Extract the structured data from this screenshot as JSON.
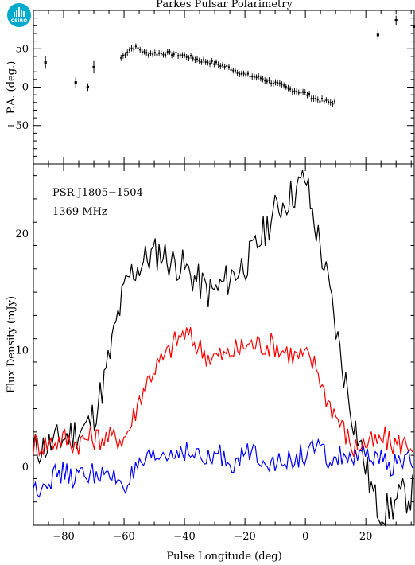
{
  "title": "Parkes Pulsar Polarimetry",
  "logo": {
    "text": "CSIRO",
    "color": "#00a9ce"
  },
  "chart_data": [
    {
      "type": "scatter",
      "ylabel": "P.A. (deg.)",
      "xlim": [
        -90,
        36
      ],
      "ylim": [
        -100,
        100
      ],
      "yticks": [
        -50,
        0,
        50
      ],
      "points": [
        {
          "x": -86,
          "y": 32,
          "err": 8
        },
        {
          "x": -76,
          "y": 6,
          "err": 7
        },
        {
          "x": -72,
          "y": 0,
          "err": 5
        },
        {
          "x": -70,
          "y": 26,
          "err": 8
        },
        {
          "x": 24,
          "y": 68,
          "err": 6
        },
        {
          "x": 30,
          "y": 87,
          "err": 6
        },
        {
          "x": 36,
          "y": 79,
          "err": 6
        }
      ],
      "dense_track": {
        "x": [
          -61,
          -59,
          -57,
          -55,
          -53,
          -50,
          -45,
          -40,
          -35,
          -30,
          -25,
          -20,
          -15,
          -10,
          -5,
          0,
          3,
          6,
          8,
          10
        ],
        "y": [
          38,
          46,
          52,
          50,
          44,
          44,
          44,
          41,
          35,
          31,
          25,
          16,
          12,
          5,
          -3,
          -8,
          -15,
          -18,
          -20,
          -20
        ],
        "err": 4
      },
      "color": "#000000"
    },
    {
      "type": "line",
      "xlabel": "Pulse Longitude (deg)",
      "ylabel": "Flux Density (mJy)",
      "xlim": [
        -90,
        36
      ],
      "ylim": [
        -5,
        26
      ],
      "xticks": [
        -80,
        -60,
        -40,
        -20,
        0,
        20
      ],
      "yticks": [
        0,
        10,
        20
      ],
      "annotations": [
        "PSR J1805−1504",
        "1369 MHz"
      ],
      "series": [
        {
          "color": "#000000",
          "x": [
            -90,
            -85,
            -80,
            -76,
            -72,
            -70,
            -68,
            -66,
            -64,
            -62,
            -60,
            -58,
            -56,
            -54,
            -52,
            -50,
            -48,
            -46,
            -44,
            -42,
            -40,
            -38,
            -36,
            -34,
            -32,
            -30,
            -28,
            -26,
            -24,
            -22,
            -20,
            -18,
            -16,
            -14,
            -12,
            -10,
            -8,
            -6,
            -4,
            -2,
            0,
            2,
            4,
            6,
            8,
            10,
            12,
            14,
            16,
            18,
            20,
            22,
            24,
            26,
            28,
            30,
            32,
            34,
            36
          ],
          "y": [
            1.5,
            1.8,
            2.5,
            3.0,
            3.5,
            4.5,
            6.0,
            8.0,
            10.5,
            13.0,
            15.0,
            16.5,
            17.0,
            17.5,
            18.0,
            18.2,
            18.5,
            18.0,
            17.5,
            17.5,
            17.0,
            16.5,
            16.0,
            15.5,
            15.0,
            15.0,
            15.5,
            16.0,
            16.5,
            17.0,
            17.5,
            18.0,
            19.0,
            20.0,
            21.0,
            22.0,
            22.5,
            23.0,
            23.5,
            24.0,
            25.0,
            22.0,
            20.0,
            17.5,
            15.0,
            12.0,
            9.0,
            6.5,
            4.0,
            2.0,
            0.0,
            -2.0,
            -3.5,
            -4.0,
            -3.5,
            -3.0,
            -2.5,
            -2.5,
            -2.0
          ]
        },
        {
          "color": "#ff0000",
          "x": [
            -90,
            -85,
            -80,
            -76,
            -72,
            -70,
            -68,
            -66,
            -64,
            -62,
            -60,
            -58,
            -56,
            -54,
            -52,
            -50,
            -48,
            -46,
            -44,
            -42,
            -40,
            -38,
            -36,
            -34,
            -32,
            -30,
            -28,
            -26,
            -24,
            -22,
            -20,
            -18,
            -16,
            -14,
            -12,
            -10,
            -8,
            -6,
            -4,
            -2,
            0,
            2,
            4,
            6,
            8,
            10,
            12,
            14,
            16,
            18,
            20,
            22,
            24,
            26,
            28,
            30,
            32,
            34,
            36
          ],
          "y": [
            2.0,
            2.0,
            2.5,
            2.0,
            2.5,
            2.5,
            2.5,
            2.5,
            2.5,
            2.5,
            2.5,
            3.5,
            5.0,
            6.5,
            7.5,
            8.5,
            9.0,
            9.5,
            10.5,
            11.0,
            11.5,
            11.0,
            10.5,
            10.0,
            9.5,
            9.5,
            9.5,
            9.5,
            10.0,
            10.0,
            10.5,
            10.5,
            10.5,
            10.5,
            10.5,
            10.5,
            10.0,
            10.0,
            9.5,
            9.5,
            9.5,
            9.0,
            8.5,
            6.5,
            5.5,
            4.5,
            3.5,
            2.5,
            1.5,
            2.0,
            2.0,
            2.0,
            2.0,
            2.5,
            2.0,
            2.0,
            2.0,
            2.0,
            2.0
          ]
        },
        {
          "color": "#0000ff",
          "x": [
            -90,
            -85,
            -80,
            -76,
            -72,
            -70,
            -68,
            -66,
            -64,
            -62,
            -60,
            -58,
            -56,
            -54,
            -52,
            -50,
            -48,
            -46,
            -44,
            -42,
            -40,
            -38,
            -36,
            -34,
            -32,
            -30,
            -28,
            -26,
            -24,
            -22,
            -20,
            -18,
            -16,
            -14,
            -12,
            -10,
            -8,
            -6,
            -4,
            -2,
            0,
            2,
            4,
            6,
            8,
            10,
            12,
            14,
            16,
            18,
            20,
            22,
            24,
            26,
            28,
            30,
            32,
            34,
            36
          ],
          "y": [
            -2.0,
            -1.0,
            -0.5,
            -1.0,
            -0.5,
            -0.5,
            -0.5,
            -1.0,
            -1.0,
            -1.0,
            -1.5,
            -1.0,
            -0.5,
            0.0,
            0.5,
            0.5,
            1.0,
            1.0,
            1.0,
            1.5,
            1.5,
            1.0,
            1.0,
            0.5,
            0.5,
            1.0,
            1.0,
            0.5,
            0.5,
            0.5,
            1.0,
            1.5,
            1.0,
            1.0,
            0.5,
            0.5,
            0.0,
            0.5,
            0.5,
            1.0,
            1.0,
            1.5,
            1.5,
            1.0,
            0.5,
            0.5,
            1.0,
            1.0,
            0.5,
            0.5,
            1.0,
            1.0,
            0.5,
            0.5,
            0.0,
            0.5,
            0.5,
            0.5,
            0.0
          ]
        }
      ]
    }
  ]
}
